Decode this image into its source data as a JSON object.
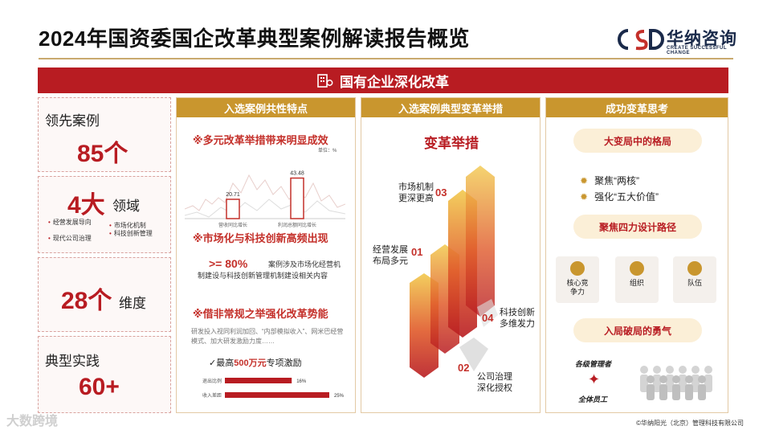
{
  "title": "2024年国资委国企改革典型案例解读报告概览",
  "logo": {
    "name": "华纳咨询",
    "sub": "CREATE SUCCESSFUL CHANGE"
  },
  "banner": {
    "text": "国有企业深化改革"
  },
  "left": {
    "box1": {
      "label": "领先案例",
      "value": "85个"
    },
    "box2": {
      "value": "4大",
      "label": "领域",
      "bullets": [
        "经营发展导向",
        "现代公司治理",
        "市场化机制",
        "科技创新管理"
      ]
    },
    "box3": {
      "value": "28个",
      "label": "维度"
    },
    "box4": {
      "label": "典型实践",
      "value": "60+"
    }
  },
  "panel1": {
    "header": "入选案例共性特点",
    "sec1": "※多元改革举措带来明显成效",
    "unit": "单位：%",
    "chart_data": {
      "type": "bar",
      "categories": [
        "营收同比增长",
        "利润总额同比增长"
      ],
      "values": [
        20.71,
        43.48
      ],
      "labels": [
        "20.71",
        "43.48"
      ]
    },
    "sec2": "※市场化与科技创新高频出现",
    "stat_prefix": ">= 80%",
    "stat_text": "案例涉及市场化经营机制建设与科技创新管理机制建设相关内容",
    "sec3": "※借非常规之举强化改革势能",
    "desc": "研发投入视同利润加回、“内部模拟收入”、网米巴经营模式、加大研发激励力度……",
    "reward_prefix": "✓最高",
    "reward_highlight": "500万元",
    "reward_suffix": "专项激励",
    "chart2": {
      "type": "bar",
      "categories": [
        "退出比例",
        "收入差距"
      ],
      "values": [
        16,
        25
      ],
      "labels": [
        "16%",
        "25%"
      ]
    }
  },
  "panel2": {
    "header": "入选案例典型变革举措",
    "title": "变革举措",
    "items": [
      {
        "num": "01",
        "text1": "经营发展",
        "text2": "布局多元"
      },
      {
        "num": "02",
        "text1": "公司治理",
        "text2": "深化授权"
      },
      {
        "num": "03",
        "text1": "市场机制",
        "text2": "更深更高"
      },
      {
        "num": "04",
        "text1": "科技创新",
        "text2": "多维发力"
      }
    ]
  },
  "panel3": {
    "header": "成功变革思考",
    "pill1": "大变局中的格局",
    "points": [
      "聚焦“两核”",
      "强化“五大价值”"
    ],
    "pill2": "聚焦四力设计路径",
    "cards": [
      {
        "text1": "核心竞",
        "text2": "争力"
      },
      {
        "text1": "组织",
        "text2": ""
      },
      {
        "text1": "队伍",
        "text2": ""
      }
    ],
    "pill3": "入局破局的勇气",
    "managers": "各级管理者",
    "staff": "全体员工"
  },
  "footer": "©华纳阳光（北京）管理科技有限公司",
  "watermark": "大数跨境"
}
